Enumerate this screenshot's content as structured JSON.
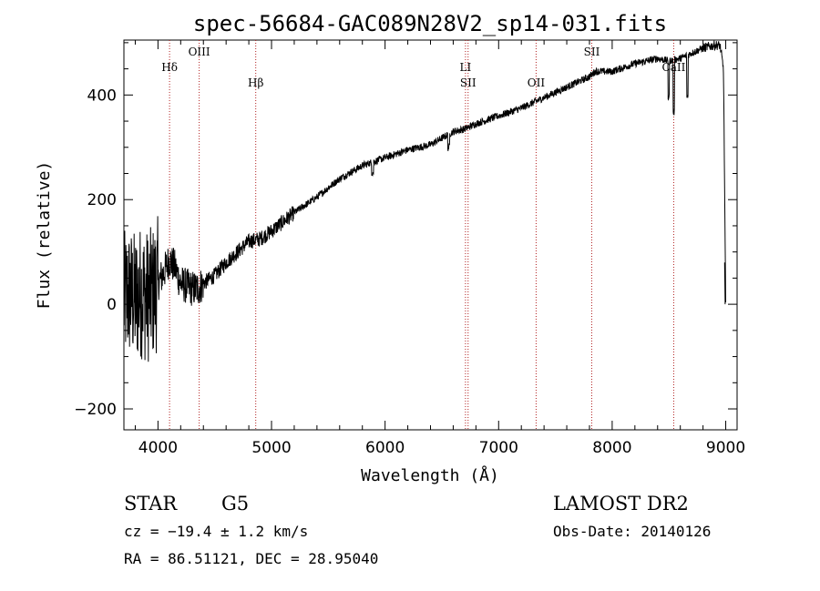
{
  "chart_data": {
    "type": "line",
    "title": "spec-56684-GAC089N28V2_sp14-031.fits",
    "xlabel": "Wavelength (Å)",
    "ylabel": "Flux (relative)",
    "xlim": [
      3700,
      9100
    ],
    "ylim": [
      -240,
      505
    ],
    "x_ticks": [
      4000,
      5000,
      6000,
      7000,
      8000,
      9000
    ],
    "x_tick_labels": [
      "4000",
      "5000",
      "6000",
      "7000",
      "8000",
      "9000"
    ],
    "y_ticks": [
      -200,
      0,
      200,
      400
    ],
    "y_tick_labels": [
      "−200",
      "0",
      "200",
      "400"
    ],
    "grid": false,
    "series": [
      {
        "x": [
          3700,
          3750,
          3800,
          3850,
          3900,
          3950,
          4000,
          4050,
          4100,
          4150,
          4200,
          4250,
          4300,
          4350,
          4400,
          4500,
          4600,
          4700,
          4800,
          4900,
          5000,
          5200,
          5400,
          5600,
          5800,
          6000,
          6200,
          6400,
          6600,
          6700,
          6800,
          7000,
          7200,
          7400,
          7600,
          7800,
          7850,
          8000,
          8200,
          8400,
          8500,
          8600,
          8700,
          8800,
          8900,
          8950,
          8980,
          9000
        ],
        "y": [
          10,
          20,
          10,
          25,
          15,
          20,
          40,
          60,
          85,
          70,
          40,
          35,
          30,
          30,
          40,
          55,
          80,
          100,
          120,
          125,
          140,
          175,
          205,
          240,
          265,
          280,
          295,
          305,
          330,
          335,
          345,
          360,
          375,
          395,
          415,
          435,
          445,
          445,
          460,
          470,
          465,
          470,
          480,
          490,
          495,
          495,
          450,
          0
        ]
      }
    ],
    "spectral_lines": [
      {
        "label": "Hδ",
        "x": 4102,
        "row": "upper"
      },
      {
        "label": "OIII",
        "x": 4363,
        "row": "top"
      },
      {
        "label": "Hβ",
        "x": 4861,
        "row": "lower"
      },
      {
        "label": "LI",
        "x": 6708,
        "row": "upper"
      },
      {
        "label": "SII",
        "x": 6731,
        "row": "lower"
      },
      {
        "label": "OII",
        "x": 7330,
        "row": "lower"
      },
      {
        "label": "SII",
        "x": 7820,
        "row": "top"
      },
      {
        "label": "CaII",
        "x": 8542,
        "row": "upper"
      }
    ],
    "colors": {
      "spectrum": "#000000",
      "line_markers": "#b22222"
    }
  },
  "info": {
    "object_class": "STAR",
    "subclass": "G5",
    "survey": "LAMOST DR2",
    "redshift": "cz = −19.4 ± 1.2 km/s",
    "obs_date": "Obs-Date: 20140126",
    "coords": "RA =  86.51121, DEC =  28.95040"
  }
}
